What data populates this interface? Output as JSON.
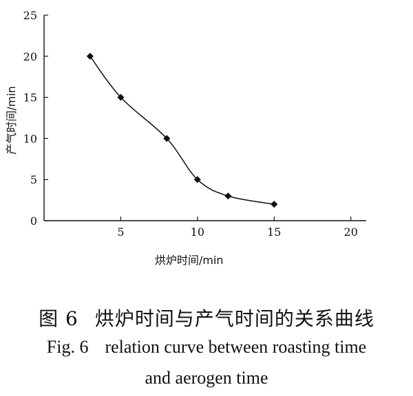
{
  "chart_data": {
    "type": "line",
    "x": [
      3,
      5,
      8,
      10,
      12,
      15
    ],
    "series": [
      {
        "values": [
          20,
          15,
          10,
          5,
          3,
          2
        ]
      }
    ],
    "xlabel": "烘炉时间/min",
    "ylabel": "产气时间/min",
    "xlim": [
      0,
      21
    ],
    "ylim": [
      0,
      25
    ],
    "x_ticks": [
      5,
      10,
      15,
      20
    ],
    "y_ticks": [
      0,
      5,
      10,
      15,
      20,
      25
    ],
    "grid": false,
    "marker": "diamond",
    "curve": "smoothed"
  },
  "caption": {
    "cn_label": "图 6",
    "cn_text": "烘炉时间与产气时间的关系曲线",
    "en_label": "Fig. 6",
    "en_line1": "relation curve between roasting time",
    "en_line2": "and aerogen time"
  },
  "colors": {
    "ink": "#111111",
    "background": "#ffffff"
  }
}
